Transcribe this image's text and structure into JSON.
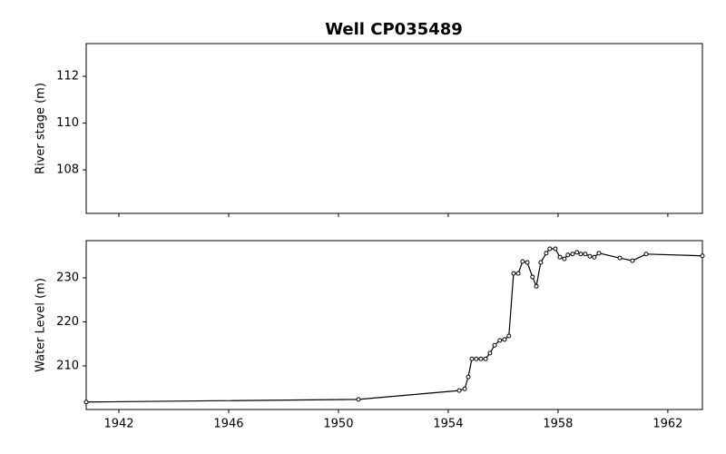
{
  "chart_data": [
    {
      "type": "line",
      "title": "Well CP035489",
      "ylabel": "River stage (m)",
      "xlim": [
        1940.81,
        1963.26
      ],
      "xticks": [
        1942,
        1946,
        1950,
        1954,
        1958,
        1962
      ],
      "show_xtick_labels": false,
      "ylim": [
        106.14,
        113.4
      ],
      "yticks": [
        108,
        110,
        112
      ]
    },
    {
      "type": "line",
      "ylabel": "Water Level (m)",
      "xlim": [
        1940.81,
        1963.26
      ],
      "xticks": [
        1942,
        1946,
        1950,
        1954,
        1958,
        1962
      ],
      "show_xtick_labels": true,
      "ylim": [
        200.1,
        238.45
      ],
      "yticks": [
        210,
        220,
        230
      ],
      "x": [
        1940.81,
        1950.73,
        1954.4,
        1954.6,
        1954.73,
        1954.86,
        1955.02,
        1955.19,
        1955.36,
        1955.52,
        1955.69,
        1955.88,
        1956.05,
        1956.21,
        1956.38,
        1956.55,
        1956.71,
        1956.88,
        1957.07,
        1957.21,
        1957.37,
        1957.57,
        1957.7,
        1957.9,
        1958.07,
        1958.23,
        1958.36,
        1958.53,
        1958.69,
        1958.83,
        1958.99,
        1959.16,
        1959.32,
        1959.49,
        1960.25,
        1960.71,
        1961.21,
        1963.26
      ],
      "series": [
        {
          "color": "#000000",
          "values": [
            201.8,
            202.4,
            204.4,
            204.8,
            207.5,
            211.6,
            211.6,
            211.6,
            211.6,
            212.9,
            214.7,
            215.8,
            216.0,
            216.8,
            231.0,
            231.0,
            233.7,
            233.5,
            230.2,
            228.1,
            233.5,
            235.6,
            236.6,
            236.6,
            234.7,
            234.3,
            235.2,
            235.4,
            235.8,
            235.4,
            235.4,
            234.9,
            234.7,
            235.6,
            234.5,
            233.9,
            235.4,
            235.0
          ]
        }
      ]
    }
  ]
}
